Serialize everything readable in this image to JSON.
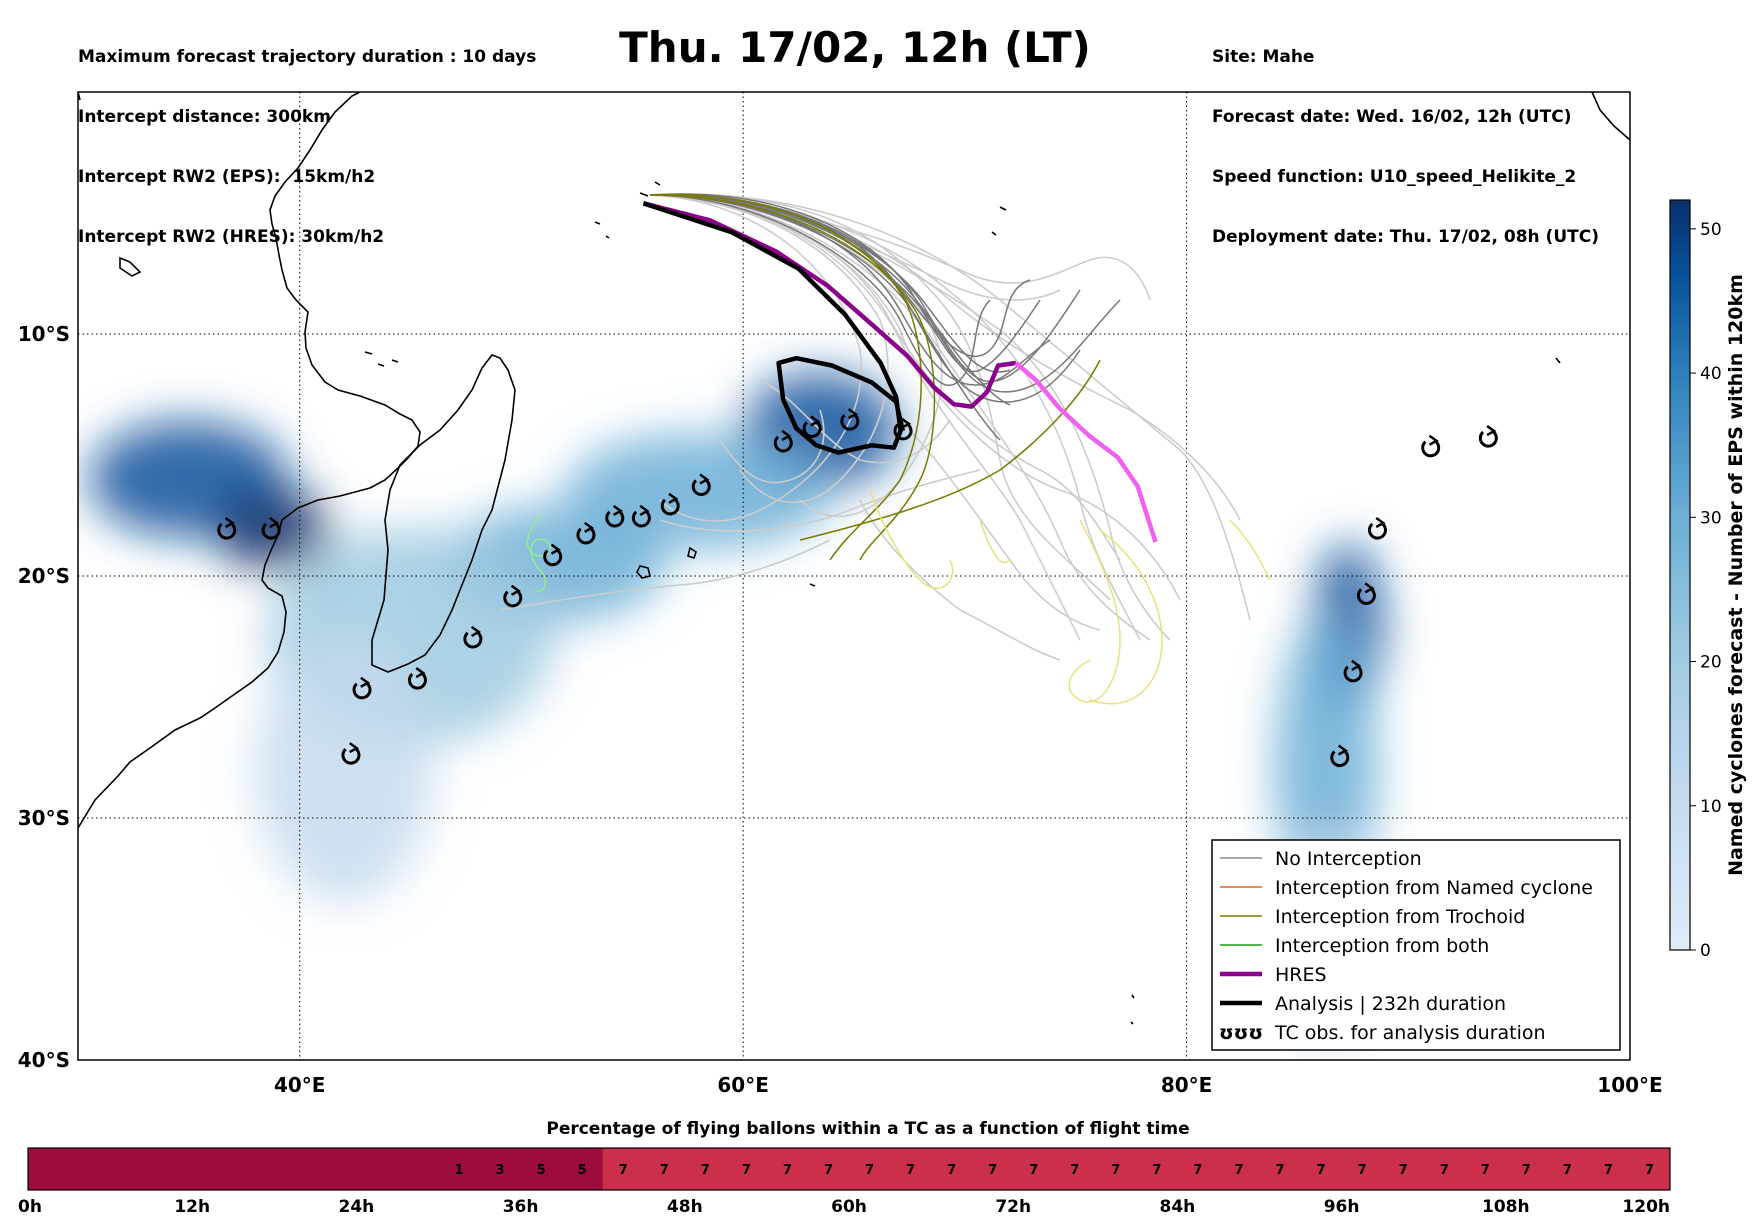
{
  "header": {
    "left": [
      "Maximum forecast trajectory duration : 10 days",
      "Intercept distance: 300km",
      "Intercept RW2 (EPS):  15km/h2",
      "Intercept RW2 (HRES): 30km/h2"
    ],
    "right": [
      "Site: Mahe",
      "Forecast date: Wed. 16/02, 12h (UTC)",
      "Speed function: U10_speed_Helikite_2",
      "Deployment date: Thu. 17/02, 08h (UTC)"
    ],
    "title": "Thu. 17/02, 12h (LT)"
  },
  "map": {
    "lon_range": [
      30,
      100
    ],
    "lat_range": [
      0,
      -40
    ],
    "lon_ticks": [
      {
        "value": 40,
        "label": "40°E"
      },
      {
        "value": 60,
        "label": "60°E"
      },
      {
        "value": 80,
        "label": "80°E"
      },
      {
        "value": 100,
        "label": "100°E"
      }
    ],
    "lat_ticks": [
      {
        "value": -10,
        "label": "10°S"
      },
      {
        "value": -20,
        "label": "20°S"
      },
      {
        "value": -30,
        "label": "30°S"
      },
      {
        "value": -40,
        "label": "40°S"
      }
    ],
    "gridlines": "dotted",
    "site": {
      "name": "Mahe",
      "lon": 55.5,
      "lat": -4.6
    },
    "tc_observations": [
      [
        36.7,
        -18.1
      ],
      [
        38.7,
        -18.1
      ],
      [
        42.8,
        -24.7
      ],
      [
        42.3,
        -27.4
      ],
      [
        45.3,
        -24.3
      ],
      [
        47.8,
        -22.6
      ],
      [
        49.6,
        -20.9
      ],
      [
        51.4,
        -19.2
      ],
      [
        52.9,
        -18.3
      ],
      [
        54.2,
        -17.6
      ],
      [
        55.4,
        -17.6
      ],
      [
        56.7,
        -17.1
      ],
      [
        58.1,
        -16.3
      ],
      [
        61.8,
        -14.5
      ],
      [
        63.1,
        -13.9
      ],
      [
        64.8,
        -13.6
      ],
      [
        67.2,
        -14.0
      ],
      [
        91.0,
        -14.7
      ],
      [
        93.6,
        -14.3
      ],
      [
        88.6,
        -18.1
      ],
      [
        88.1,
        -20.8
      ],
      [
        87.5,
        -24.0
      ],
      [
        86.9,
        -27.5
      ]
    ],
    "hres_track": [
      [
        55.5,
        -4.6
      ],
      [
        58.5,
        -5.3
      ],
      [
        61.5,
        -6.6
      ],
      [
        63.8,
        -8.0
      ],
      [
        65.8,
        -9.6
      ],
      [
        67.4,
        -10.9
      ],
      [
        68.6,
        -12.2
      ],
      [
        69.5,
        -12.9
      ],
      [
        70.3,
        -13.0
      ],
      [
        71.0,
        -12.4
      ],
      [
        71.5,
        -11.3
      ],
      [
        72.3,
        -11.2
      ],
      [
        73.2,
        -11.9
      ],
      [
        74.3,
        -13.1
      ],
      [
        75.6,
        -14.2
      ],
      [
        76.9,
        -15.1
      ],
      [
        77.8,
        -16.3
      ],
      [
        78.6,
        -18.6
      ]
    ],
    "analysis_track": [
      [
        55.5,
        -4.6
      ],
      [
        59.5,
        -5.8
      ],
      [
        62.5,
        -7.3
      ],
      [
        64.6,
        -9.2
      ],
      [
        66.2,
        -11.2
      ],
      [
        66.9,
        -12.6
      ],
      [
        67.1,
        -14.0
      ],
      [
        66.8,
        -14.7
      ],
      [
        65.8,
        -14.6
      ],
      [
        64.3,
        -14.9
      ],
      [
        63.3,
        -14.6
      ],
      [
        62.4,
        -13.9
      ],
      [
        61.8,
        -12.7
      ],
      [
        61.6,
        -11.2
      ],
      [
        62.4,
        -11.0
      ],
      [
        64.0,
        -11.3
      ],
      [
        65.8,
        -12.0
      ],
      [
        66.9,
        -12.8
      ],
      [
        67.2,
        -14.0
      ]
    ],
    "density": [
      {
        "lon": 35.0,
        "lat": -16.0,
        "rx": 4.5,
        "ry": 2.4,
        "level": 46
      },
      {
        "lon": 38.8,
        "lat": -18.1,
        "rx": 2.6,
        "ry": 1.7,
        "level": 50
      },
      {
        "lon": 63.5,
        "lat": -14.0,
        "rx": 3.5,
        "ry": 2.4,
        "level": 44
      },
      {
        "lon": 58.0,
        "lat": -16.5,
        "rx": 6.0,
        "ry": 2.4,
        "level": 30
      },
      {
        "lon": 51.5,
        "lat": -19.5,
        "rx": 5.0,
        "ry": 2.4,
        "level": 25
      },
      {
        "lon": 45.0,
        "lat": -22.5,
        "rx": 6.5,
        "ry": 4.5,
        "level": 18
      },
      {
        "lon": 42.0,
        "lat": -28.0,
        "rx": 4.0,
        "ry": 5.5,
        "level": 12
      },
      {
        "lon": 87.3,
        "lat": -22.2,
        "rx": 1.6,
        "ry": 3.6,
        "level": 46
      },
      {
        "lon": 86.3,
        "lat": -28.0,
        "rx": 2.3,
        "ry": 6.5,
        "level": 28
      },
      {
        "lon": 86.5,
        "lat": -35.0,
        "rx": 2.6,
        "ry": 4.5,
        "level": 12
      }
    ]
  },
  "legend": {
    "entries": [
      {
        "label": "No Interception",
        "color": "#8c8c8c",
        "style": "line"
      },
      {
        "label": "Interception from Named cyclone",
        "color": "#e8601c",
        "style": "line"
      },
      {
        "label": "Interception from Trochoid",
        "color": "#7a7a00",
        "style": "line"
      },
      {
        "label": "Interception from both",
        "color": "#1a9a1a",
        "style": "line"
      },
      {
        "label": "HRES",
        "color": "#8b008b",
        "style": "thick"
      },
      {
        "label": "Analysis | 232h duration",
        "color": "#000000",
        "style": "thick"
      },
      {
        "label": "TC obs. for analysis duration",
        "color": "#000000",
        "style": "marker"
      }
    ],
    "marker_glyph": "ʊʊʊ"
  },
  "colorbar": {
    "title": "Named cyclones forecast - Number of EPS within 120km",
    "min": 0,
    "max": 52,
    "ticks": [
      "0",
      "10",
      "20",
      "30",
      "40",
      "50"
    ],
    "colors": [
      "#dfecf8",
      "#c6dbef",
      "#9ecae1",
      "#6baed6",
      "#3182bd",
      "#08519c",
      "#08306b"
    ]
  },
  "timeline": {
    "title": "Percentage of flying ballons within a TC as a function of flight time",
    "tick_labels": [
      "0h",
      "12h",
      "24h",
      "36h",
      "48h",
      "60h",
      "72h",
      "84h",
      "96h",
      "108h",
      "120h"
    ],
    "cells": [
      "",
      "",
      "",
      "",
      "",
      "",
      "",
      "",
      "",
      "",
      "1",
      "3",
      "5",
      "5",
      "7",
      "7",
      "7",
      "7",
      "7",
      "7",
      "7",
      "7",
      "7",
      "7",
      "7",
      "7",
      "7",
      "7",
      "7",
      "7",
      "7",
      "7",
      "7",
      "7",
      "7",
      "7",
      "7",
      "7",
      "7",
      "7"
    ],
    "colors": {
      "dark": "#9e0b3d",
      "light": "#cc2f4b"
    }
  },
  "colors": {
    "hres": "#8b008b",
    "hres_late": "#f35ff0",
    "analysis": "#000000",
    "no_interception": "#8c8c8c",
    "no_interception_light": "#cccccc",
    "trochoid": "#7a7a00",
    "yellow_tracks": "#e8e276",
    "green_tracks": "#90ee90"
  }
}
